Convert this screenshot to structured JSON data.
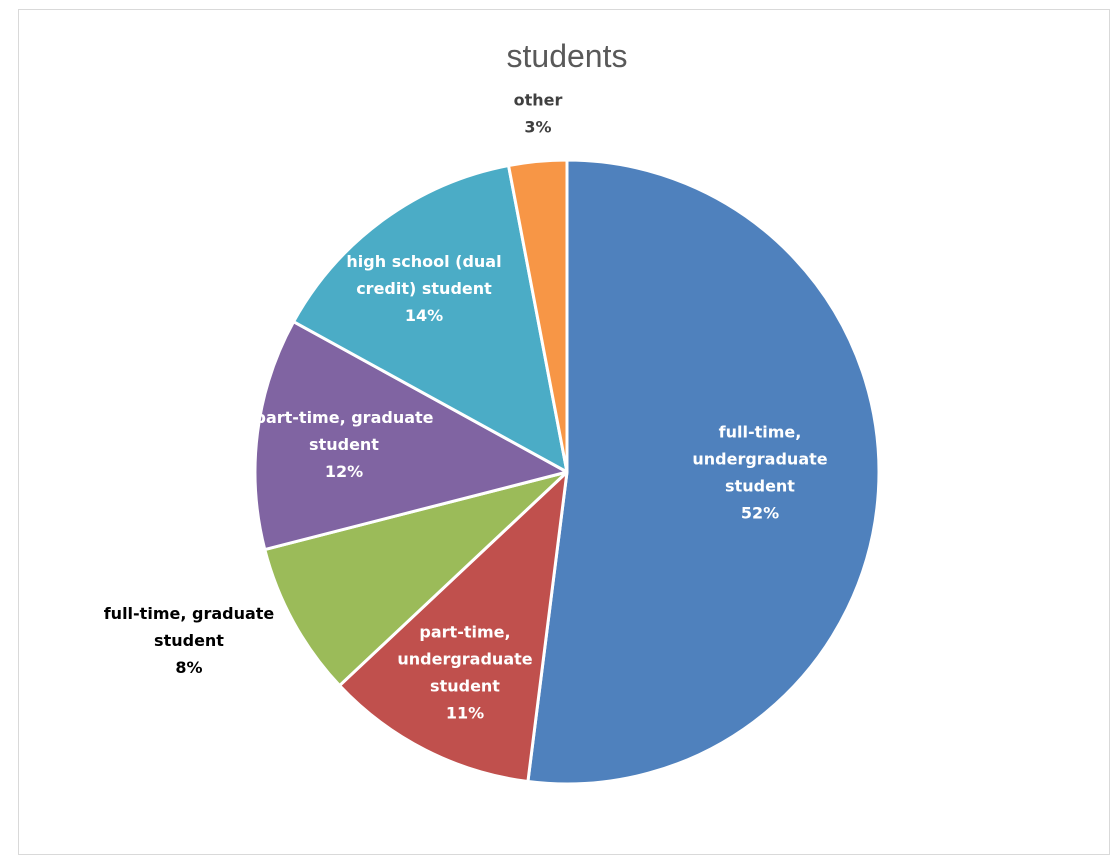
{
  "chart_data": {
    "type": "pie",
    "title": "students",
    "slices": [
      {
        "name": "full-time, undergraduate student",
        "percent": "52%",
        "value": 52,
        "color": "#4f81bd",
        "label_lines": [
          "full-time,",
          "undergraduate",
          "student",
          "52%"
        ],
        "label_color": "#ffffff"
      },
      {
        "name": "part-time, undergraduate student",
        "percent": "11%",
        "value": 11,
        "color": "#c0504d",
        "label_lines": [
          "part-time,",
          "undergraduate",
          "student",
          "11%"
        ],
        "label_color": "#ffffff"
      },
      {
        "name": "full-time, graduate student",
        "percent": "8%",
        "value": 8,
        "color": "#9bbb59",
        "label_lines": [
          "full-time, graduate",
          "student",
          "8%"
        ],
        "label_color": "#000000"
      },
      {
        "name": "part-time, graduate student",
        "percent": "12%",
        "value": 12,
        "color": "#8064a2",
        "label_lines": [
          "part-time, graduate",
          "student",
          "12%"
        ],
        "label_color": "#ffffff"
      },
      {
        "name": "high school (dual credit) student",
        "percent": "14%",
        "value": 14,
        "color": "#4bacc6",
        "label_lines": [
          "high school (dual",
          "credit) student",
          "14%"
        ],
        "label_color": "#ffffff"
      },
      {
        "name": "other",
        "percent": "3%",
        "value": 3,
        "color": "#f79646",
        "label_lines": [
          "other",
          "3%"
        ],
        "label_color": "#404040"
      }
    ]
  }
}
